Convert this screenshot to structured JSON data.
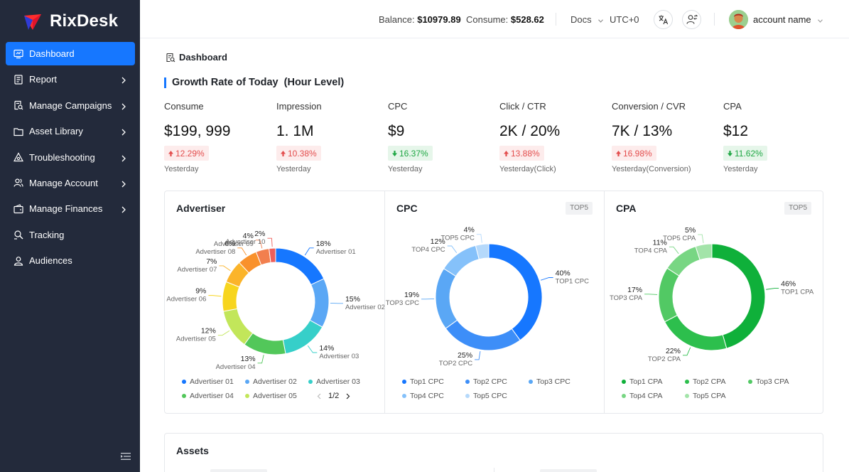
{
  "brand": {
    "name": "RixDesk"
  },
  "sidebar": {
    "items": [
      {
        "label": "Dashboard",
        "icon": "dashboard-icon",
        "active": true,
        "has_children": false
      },
      {
        "label": "Report",
        "icon": "report-icon",
        "active": false,
        "has_children": true
      },
      {
        "label": "Manage Campaigns",
        "icon": "campaign-icon",
        "active": false,
        "has_children": true
      },
      {
        "label": "Asset Library",
        "icon": "folder-icon",
        "active": false,
        "has_children": true
      },
      {
        "label": "Troubleshooting",
        "icon": "troubleshoot-icon",
        "active": false,
        "has_children": true
      },
      {
        "label": "Manage Account",
        "icon": "users-icon",
        "active": false,
        "has_children": true
      },
      {
        "label": "Manage Finances",
        "icon": "wallet-icon",
        "active": false,
        "has_children": true
      },
      {
        "label": "Tracking",
        "icon": "tracking-icon",
        "active": false,
        "has_children": false
      },
      {
        "label": "Audiences",
        "icon": "user-icon",
        "active": false,
        "has_children": false
      }
    ]
  },
  "header": {
    "balance_label": "Balance:",
    "balance_value": "$10979.89",
    "consume_label": "Consume:",
    "consume_value": "$528.62",
    "docs_label": "Docs",
    "timezone": "UTC+0",
    "account_name": "account name"
  },
  "breadcrumb": {
    "label": "Dashboard"
  },
  "growth": {
    "title": "Growth Rate of Today",
    "suffix": "(Hour Level)",
    "metrics": [
      {
        "label": "Consume",
        "value": "$199, 999",
        "change": "12.29%",
        "direction": "up",
        "sub": "Yesterday"
      },
      {
        "label": "Impression",
        "value": "1. 1M",
        "change": "10.38%",
        "direction": "up",
        "sub": "Yesterday"
      },
      {
        "label": "CPC",
        "value": "$9",
        "change": "16.37%",
        "direction": "down",
        "sub": "Yesterday"
      },
      {
        "label": "Click / CTR",
        "value": "2K / 20%",
        "change": "13.88%",
        "direction": "up",
        "sub": "Yesterday(Click)"
      },
      {
        "label": "Conversion / CVR",
        "value": "7K / 13%",
        "change": "16.98%",
        "direction": "up",
        "sub": "Yesterday(Conversion)"
      },
      {
        "label": "CPA",
        "value": "$12",
        "change": "11.62%",
        "direction": "down",
        "sub": "Yesterday"
      }
    ]
  },
  "chart_data": [
    {
      "type": "pie",
      "title": "Advertiser",
      "tag": "",
      "slices": [
        {
          "name": "Advertiser 01",
          "value": 18,
          "label": "18%",
          "color": "#1677ff"
        },
        {
          "name": "Advertiser 02",
          "value": 15,
          "label": "15%",
          "color": "#5aa7f5"
        },
        {
          "name": "Advertiser 03",
          "value": 14,
          "label": "14%",
          "color": "#36cfc9"
        },
        {
          "name": "Advertiser 04",
          "value": 13,
          "label": "13%",
          "color": "#52c75a"
        },
        {
          "name": "Advertiser 05",
          "value": 12,
          "label": "12%",
          "color": "#c2e65a"
        },
        {
          "name": "Advertiser 06",
          "value": 9,
          "label": "9%",
          "color": "#f7d51e"
        },
        {
          "name": "Advertiser 07",
          "value": 7,
          "label": "7%",
          "color": "#fbb42a"
        },
        {
          "name": "Advertiser 08",
          "value": 6,
          "label": "6%",
          "color": "#f9912b"
        },
        {
          "name": "Advertiser 09",
          "value": 4,
          "label": "4%",
          "color": "#f27f4e"
        },
        {
          "name": "Advertiser 10",
          "value": 2,
          "label": "2%",
          "color": "#ee5f5b"
        }
      ],
      "legend": [
        "Advertiser 01",
        "Advertiser 02",
        "Advertiser 03",
        "Advertiser 04",
        "Advertiser 05"
      ],
      "pager": "1/2"
    },
    {
      "type": "pie",
      "title": "CPC",
      "tag": "TOP5",
      "slices": [
        {
          "name": "TOP1 CPC",
          "value": 40,
          "label": "40%",
          "color": "#1677ff"
        },
        {
          "name": "TOP2 CPC",
          "value": 25,
          "label": "25%",
          "color": "#3d8ef8"
        },
        {
          "name": "TOP3 CPC",
          "value": 19,
          "label": "19%",
          "color": "#5aa7f5"
        },
        {
          "name": "TOP4 CPC",
          "value": 12,
          "label": "12%",
          "color": "#85c1fa"
        },
        {
          "name": "TOP5 CPC",
          "value": 4,
          "label": "4%",
          "color": "#b5d9fb"
        }
      ],
      "legend": [
        "Top1 CPC",
        "Top2 CPC",
        "Top3 CPC",
        "Top4 CPC",
        "Top5 CPC"
      ]
    },
    {
      "type": "pie",
      "title": "CPA",
      "tag": "TOP5",
      "slices": [
        {
          "name": "TOP1 CPA",
          "value": 46,
          "label": "46%",
          "color": "#0fb03a"
        },
        {
          "name": "TOP2 CPA",
          "value": 22,
          "label": "22%",
          "color": "#2dbf4d"
        },
        {
          "name": "TOP3 CPA",
          "value": 17,
          "label": "17%",
          "color": "#52c964"
        },
        {
          "name": "TOP4 CPA",
          "value": 11,
          "label": "11%",
          "color": "#78d683"
        },
        {
          "name": "TOP5 CPA",
          "value": 5,
          "label": "5%",
          "color": "#a3e4a9"
        }
      ],
      "legend": [
        "Top1 CPA",
        "Top2 CPA",
        "Top3 CPA",
        "Top4 CPA",
        "Top5 CPA"
      ]
    }
  ],
  "assets": {
    "title": "Assets"
  }
}
